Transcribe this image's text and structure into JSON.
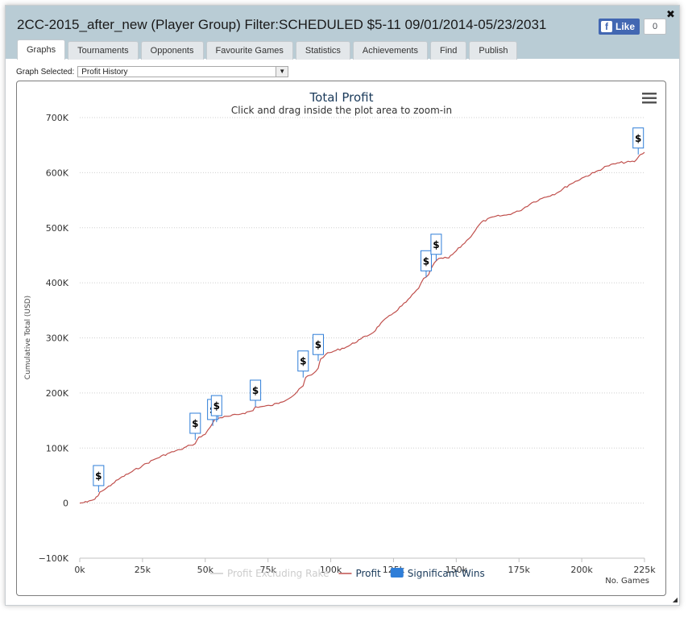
{
  "window": {
    "title": "2CC-2015_after_new (Player Group) Filter:SCHEDULED $5-11 09/01/2014-05/23/2031",
    "close_symbol": "✖",
    "fb_logo": "f",
    "fb_like_label": "Like",
    "fb_like_count": "0"
  },
  "tabs": [
    {
      "label": "Graphs",
      "active": true
    },
    {
      "label": "Tournaments"
    },
    {
      "label": "Opponents"
    },
    {
      "label": "Favourite Games"
    },
    {
      "label": "Statistics"
    },
    {
      "label": "Achievements"
    },
    {
      "label": "Find"
    },
    {
      "label": "Publish"
    }
  ],
  "selector": {
    "label": "Graph Selected:",
    "value": "Profit History"
  },
  "chart_data": {
    "type": "line",
    "title": "Total Profit",
    "subtitle": "Click and drag inside the plot area to zoom-in",
    "ylabel": "Cumulative Total (USD)",
    "xlabel": "No. Games",
    "xlim": [
      0,
      225000
    ],
    "ylim": [
      -100000,
      700000
    ],
    "x_ticks": [
      0,
      25000,
      50000,
      75000,
      100000,
      125000,
      150000,
      175000,
      200000,
      225000
    ],
    "x_tick_labels": [
      "0k",
      "25k",
      "50k",
      "75k",
      "100k",
      "125k",
      "150k",
      "175k",
      "200k",
      "225k"
    ],
    "y_ticks": [
      -100000,
      0,
      100000,
      200000,
      300000,
      400000,
      500000,
      600000,
      700000
    ],
    "y_tick_labels": [
      "−100K",
      "0",
      "100K",
      "200K",
      "300K",
      "400K",
      "500K",
      "600K",
      "700K"
    ],
    "grid": true,
    "legend_placement": "bottom",
    "legend": [
      {
        "label": "Profit Excluding Rake",
        "color": "#cccccc",
        "hidden": true
      },
      {
        "label": "Profit",
        "color": "#c0504d"
      },
      {
        "label": "Significant Wins",
        "color": "#2f7ed8"
      }
    ],
    "series": [
      {
        "name": "Profit",
        "color": "#c0504d",
        "x": [
          0,
          3000,
          6000,
          7000,
          8000,
          10000,
          13000,
          16000,
          20000,
          25000,
          30000,
          35000,
          40000,
          44000,
          46000,
          47500,
          50000,
          52000,
          53500,
          54500,
          56000,
          60000,
          65000,
          69000,
          70000,
          72000,
          76000,
          80000,
          85000,
          89000,
          90000,
          93000,
          95000,
          96000,
          98000,
          102000,
          107000,
          112000,
          117000,
          120000,
          125000,
          130000,
          135000,
          137000,
          139000,
          140500,
          142000,
          144000,
          147000,
          150000,
          155000,
          160000,
          165000,
          170000,
          175000,
          180000,
          185000,
          190000,
          195000,
          200000,
          205000,
          210000,
          215000,
          221000,
          222500,
          223500,
          225000
        ],
        "y": [
          0,
          2000,
          7000,
          12000,
          20000,
          25000,
          35000,
          45000,
          55000,
          68000,
          80000,
          90000,
          97000,
          105000,
          108000,
          120000,
          125000,
          138000,
          150000,
          155000,
          155000,
          158000,
          163000,
          168000,
          175000,
          175000,
          177000,
          183000,
          195000,
          213000,
          228000,
          235000,
          245000,
          262000,
          270000,
          277000,
          285000,
          298000,
          310000,
          327000,
          345000,
          365000,
          390000,
          408000,
          415000,
          430000,
          440000,
          445000,
          445000,
          458000,
          480000,
          510000,
          520000,
          523000,
          530000,
          545000,
          555000,
          563000,
          578000,
          590000,
          600000,
          612000,
          618000,
          620000,
          628000,
          633000,
          637000
        ]
      }
    ],
    "significant_wins": [
      {
        "x": 7500,
        "y": 20000,
        "label": "$"
      },
      {
        "x": 46000,
        "y": 115000,
        "label": "$"
      },
      {
        "x": 53000,
        "y": 140000,
        "label": "$"
      },
      {
        "x": 54500,
        "y": 147000,
        "label": "$"
      },
      {
        "x": 70000,
        "y": 175000,
        "label": "$"
      },
      {
        "x": 89000,
        "y": 228000,
        "label": "$"
      },
      {
        "x": 95000,
        "y": 258000,
        "label": "$"
      },
      {
        "x": 138000,
        "y": 410000,
        "label": "$"
      },
      {
        "x": 142000,
        "y": 440000,
        "label": "$"
      },
      {
        "x": 222500,
        "y": 633000,
        "label": "$"
      }
    ]
  }
}
